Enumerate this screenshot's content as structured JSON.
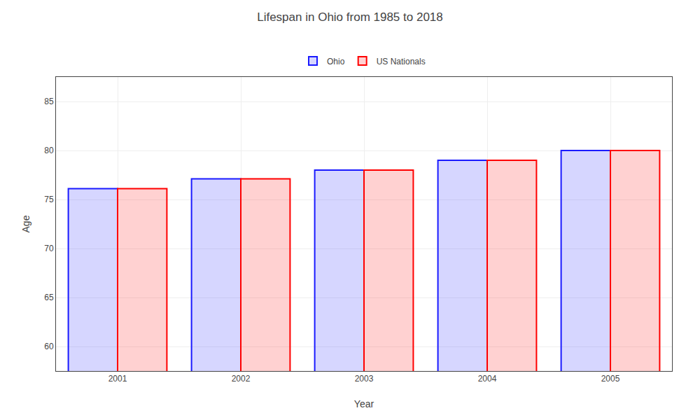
{
  "chart_data": {
    "type": "bar",
    "title": "Lifespan in Ohio from 1985 to 2018",
    "x_label": "Year",
    "y_label": "Age",
    "categories": [
      "2001",
      "2002",
      "2003",
      "2004",
      "2005"
    ],
    "series": [
      {
        "name": "Ohio",
        "color": "#1a1aff",
        "values": [
          76.1,
          77.1,
          78.0,
          79.0,
          80.0
        ]
      },
      {
        "name": "US Nationals",
        "color": "#ff0000",
        "values": [
          76.1,
          77.1,
          78.0,
          79.0,
          80.0
        ]
      }
    ],
    "ylim": [
      57.5,
      87.5
    ],
    "yticks": [
      60,
      65,
      70,
      75,
      80,
      85
    ],
    "grid": true,
    "legend": "top"
  }
}
